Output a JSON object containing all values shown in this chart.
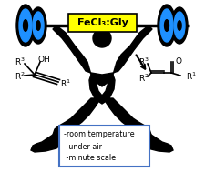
{
  "title_text": "FeCl₃:Gly",
  "title_bg": "#ffff00",
  "title_color": "#000000",
  "bullet_lines": [
    "-room temperature",
    " -under air",
    " -minute scale"
  ],
  "box_border_color": "#4472c4",
  "background_color": "#ffffff",
  "barbell_color": "#000000",
  "weight_disk_color": "#1e90ff",
  "weight_disk_dark": "#000000",
  "arrow_color": "#000000",
  "left_mol_color": "#000000",
  "right_mol_color": "#000000",
  "fig_width": 2.25,
  "fig_height": 1.89,
  "dpi": 100
}
